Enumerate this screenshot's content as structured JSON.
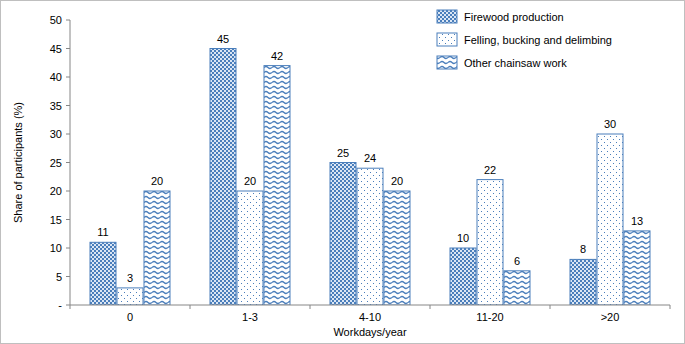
{
  "chart_data": {
    "type": "bar",
    "x_label": "Workdays/year",
    "y_label": "Share of participants (%)",
    "categories": [
      "0",
      "1-3",
      "4-10",
      "11-20",
      ">20"
    ],
    "series": [
      {
        "name": "Firewood production",
        "color": "#4a7ebb",
        "values": [
          11,
          45,
          25,
          10,
          8
        ]
      },
      {
        "name": "Felling, bucking and delimbing",
        "color": "#4a7ebb",
        "values": [
          3,
          20,
          24,
          22,
          30
        ]
      },
      {
        "name": "Other chainsaw work",
        "color": "#4a7ebb",
        "values": [
          20,
          42,
          20,
          6,
          13
        ]
      }
    ],
    "ylim": [
      0,
      50
    ],
    "yticks": [
      {
        "value": 0,
        "label": "-"
      },
      5,
      10,
      15,
      20,
      25,
      30,
      35,
      40,
      45,
      50
    ],
    "grid": false,
    "legend": "top-right",
    "data_labels": true
  }
}
